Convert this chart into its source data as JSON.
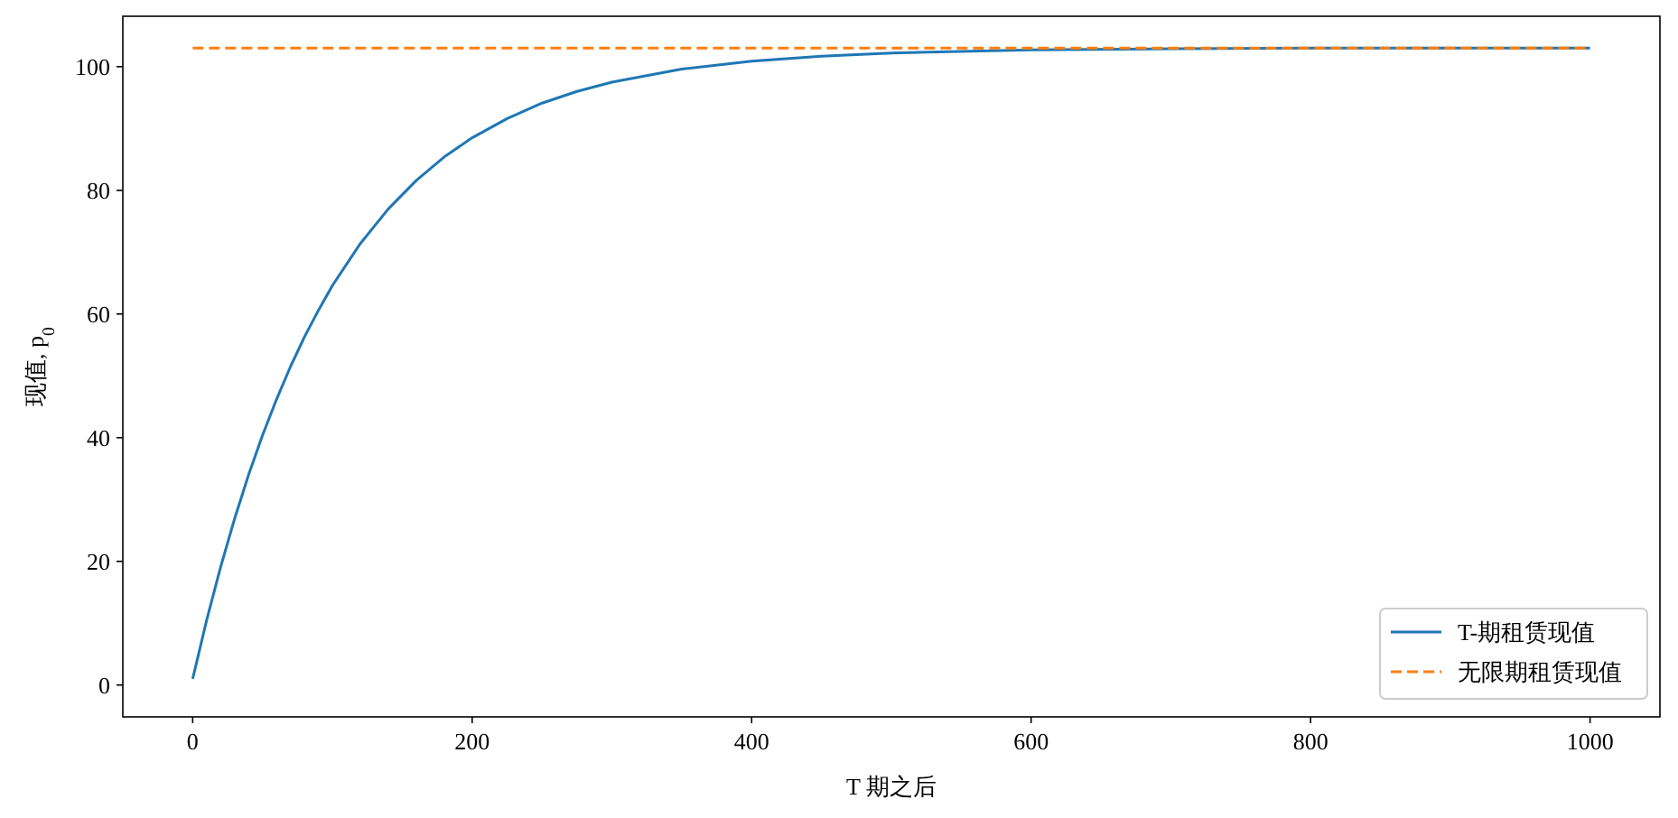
{
  "chart_data": {
    "type": "line",
    "xlabel": "T 期之后",
    "ylabel": "现值, p$_{0}$",
    "xlim": [
      -50,
      1050
    ],
    "xticks": [
      0,
      200,
      400,
      600,
      800,
      1000
    ],
    "ylim": [
      -5.15,
      108.15
    ],
    "yticks": [
      0,
      20,
      40,
      60,
      80,
      100
    ],
    "legend": "bottom right",
    "grid": false,
    "series": [
      {
        "name": "T-期租赁现值",
        "color": "#1f77b4",
        "line_style": "solid",
        "x": [
          0,
          10,
          20,
          30,
          40,
          50,
          60,
          70,
          80,
          90,
          100,
          120,
          140,
          160,
          180,
          200,
          225,
          250,
          275,
          300,
          350,
          400,
          450,
          500,
          600,
          700,
          800,
          1000
        ],
        "values": [
          1.0,
          10.5,
          19.1,
          26.9,
          34.0,
          40.4,
          46.2,
          51.5,
          56.3,
          60.6,
          64.6,
          71.4,
          77.0,
          81.6,
          85.4,
          88.5,
          91.6,
          94.1,
          96.0,
          97.5,
          99.6,
          100.9,
          101.7,
          102.2,
          102.7,
          102.9,
          103.0,
          103.0
        ]
      },
      {
        "name": "无限期租赁现值",
        "color": "#ff7f0e",
        "line_style": "dashed",
        "x": [
          0,
          1000
        ],
        "values": [
          103,
          103
        ]
      }
    ]
  }
}
